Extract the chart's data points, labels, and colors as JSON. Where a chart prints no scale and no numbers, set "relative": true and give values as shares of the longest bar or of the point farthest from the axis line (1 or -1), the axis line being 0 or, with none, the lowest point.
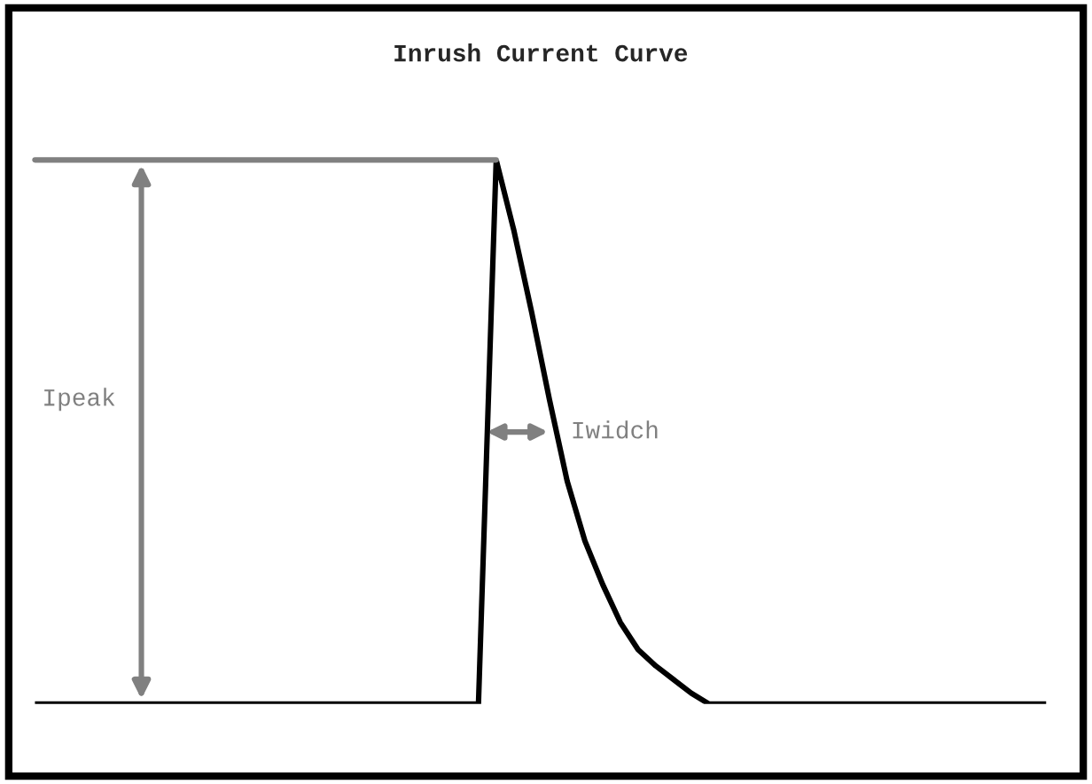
{
  "chart_data": {
    "type": "line",
    "title": "Inrush Current Curve",
    "relative": true,
    "categories": [
      null,
      null,
      null,
      null,
      null,
      null,
      null,
      null,
      null,
      null,
      null,
      null,
      null,
      null,
      null,
      null,
      null,
      null,
      null,
      null,
      null,
      null,
      null,
      null,
      null,
      null,
      null,
      null,
      null,
      null,
      null,
      null,
      null,
      null,
      null,
      null,
      null,
      null,
      null,
      null,
      null,
      null,
      null,
      null,
      null,
      null,
      null,
      null,
      null,
      null,
      null,
      null,
      null,
      null,
      null,
      null,
      null,
      null
    ],
    "series": [
      {
        "color": "#000000",
        "values": [
          0,
          0,
          0,
          0,
          0,
          0,
          0,
          0,
          0,
          0,
          0,
          0,
          0,
          0,
          0,
          0,
          0,
          0,
          0,
          0,
          0,
          0,
          0,
          0,
          0,
          0,
          1,
          0.87,
          0.72,
          0.56,
          0.41,
          0.3,
          0.22,
          0.15,
          0.1,
          0.07,
          0.045,
          0.02,
          0,
          0,
          0,
          0,
          0,
          0,
          0,
          0,
          0,
          0,
          0,
          0,
          0,
          0,
          0,
          0,
          0,
          0,
          0,
          0
        ]
      }
    ],
    "ref_lines": [
      {
        "axis": "y",
        "value": 1,
        "label": null,
        "color": "#808080"
      }
    ],
    "annotations": [
      "Ipeak",
      "Iwidch"
    ]
  }
}
